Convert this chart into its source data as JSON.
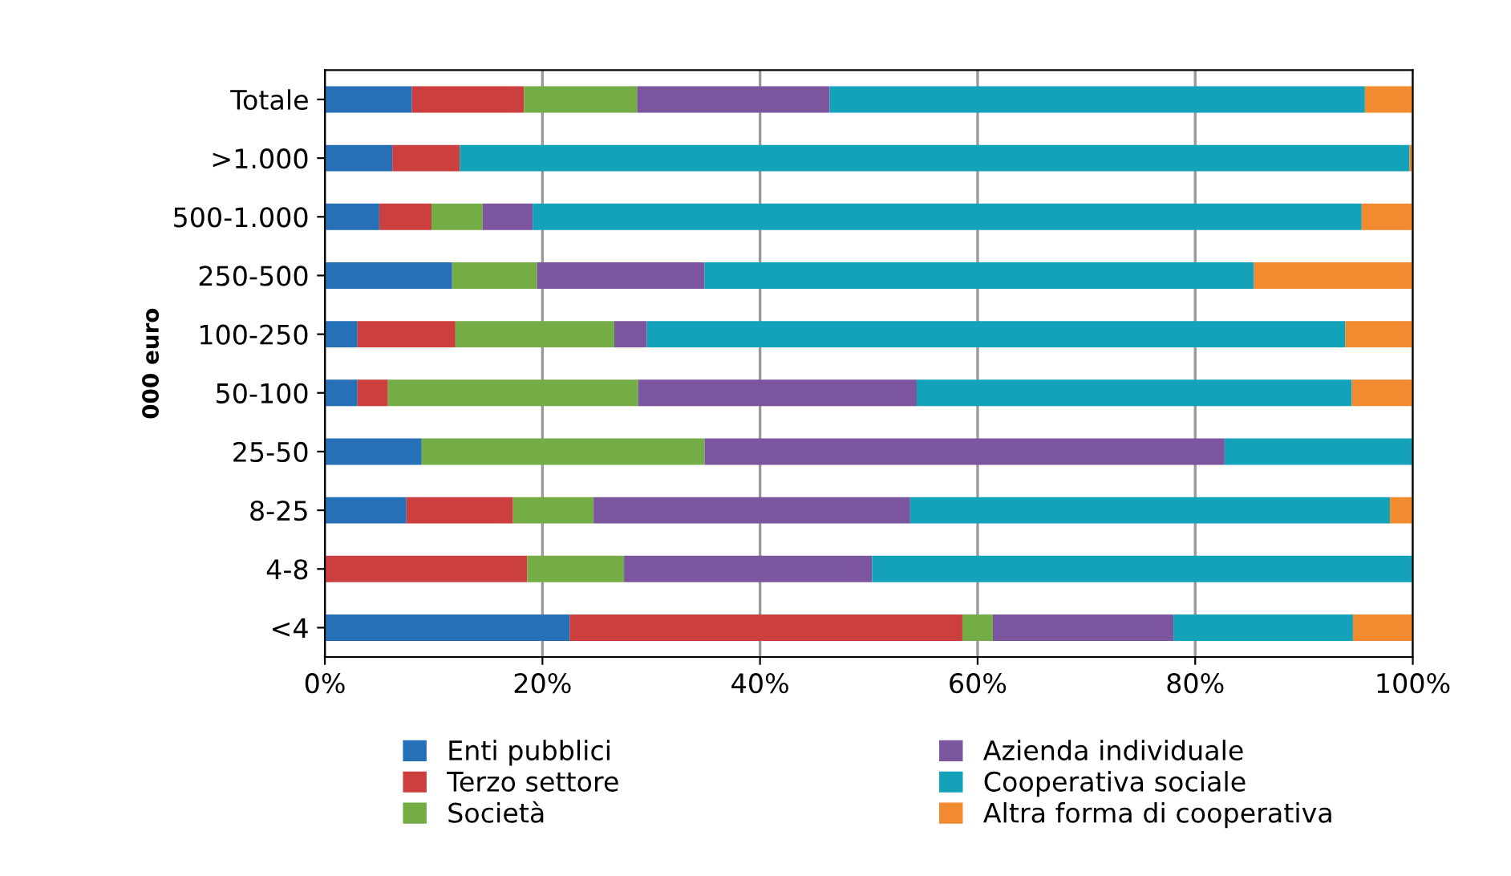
{
  "chart_data": {
    "type": "bar",
    "orientation": "horizontal",
    "stacked": true,
    "ylabel": "000 euro",
    "categories": [
      "Totale",
      ">1.000",
      "500-1.000",
      "250-500",
      "100-250",
      "50-100",
      "25-50",
      "8-25",
      "4-8",
      "<4"
    ],
    "series": [
      {
        "name": "Enti pubblici",
        "color": "#2670b8",
        "values": [
          8.0,
          6.2,
          5.0,
          11.7,
          3.0,
          3.0,
          8.9,
          7.5,
          0,
          22.5
        ]
      },
      {
        "name": "Terzo settore",
        "color": "#cc3f3f",
        "values": [
          10.3,
          6.2,
          4.8,
          0,
          9.0,
          2.8,
          0,
          9.8,
          18.6,
          36.1
        ]
      },
      {
        "name": "Società",
        "color": "#74ad45",
        "values": [
          10.4,
          0,
          4.7,
          7.8,
          14.6,
          23.0,
          26.0,
          7.4,
          8.9,
          2.8
        ]
      },
      {
        "name": "Azienda individuale",
        "color": "#7b559e",
        "values": [
          17.7,
          0,
          4.6,
          15.4,
          3.0,
          25.6,
          47.8,
          29.1,
          22.8,
          16.6
        ]
      },
      {
        "name": "Cooperativa sociale",
        "color": "#14a2ba",
        "values": [
          49.2,
          87.3,
          76.2,
          50.5,
          64.2,
          40.0,
          17.3,
          44.1,
          49.7,
          16.5
        ]
      },
      {
        "name": "Altra forma di cooperativa",
        "color": "#f28a30",
        "values": [
          4.4,
          0.3,
          4.7,
          14.6,
          6.2,
          5.6,
          0,
          2.1,
          0,
          5.5
        ]
      }
    ],
    "xlim": [
      0,
      100
    ],
    "xticks": [
      {
        "value": 0,
        "label": "0%"
      },
      {
        "value": 20,
        "label": "20%"
      },
      {
        "value": 40,
        "label": "40%"
      },
      {
        "value": 60,
        "label": "60%"
      },
      {
        "value": 80,
        "label": "80%"
      },
      {
        "value": 100,
        "label": "100%"
      }
    ],
    "grid": "x",
    "legend": "bottom"
  }
}
